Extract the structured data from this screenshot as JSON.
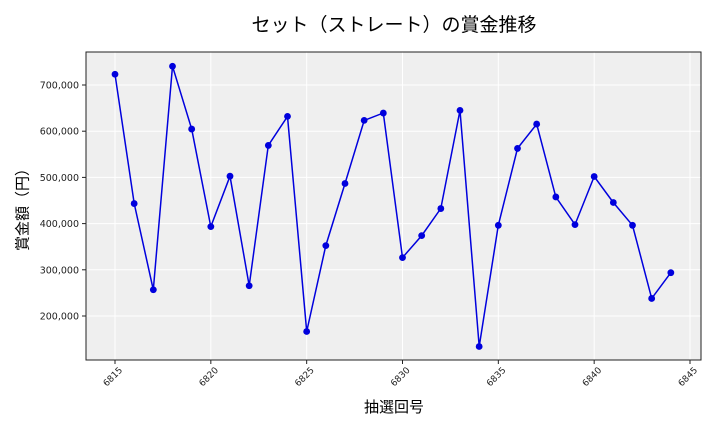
{
  "chart_data": {
    "type": "line",
    "title": "セット（ストレート）の賞金推移",
    "xlabel": "抽選回号",
    "ylabel": "賞金額（円）",
    "x": [
      6815,
      6816,
      6817,
      6818,
      6819,
      6820,
      6821,
      6822,
      6823,
      6824,
      6825,
      6826,
      6827,
      6828,
      6829,
      6830,
      6831,
      6832,
      6833,
      6834,
      6835,
      6836,
      6837,
      6838,
      6839,
      6840,
      6841,
      6842,
      6843,
      6844
    ],
    "series": [
      {
        "name": "賞金額",
        "color": "#0000dd",
        "values": [
          723200,
          443400,
          256800,
          740600,
          604600,
          393500,
          502600,
          265500,
          569200,
          632100,
          166400,
          352300,
          486800,
          623400,
          639300,
          326300,
          374000,
          432600,
          645100,
          134000,
          396300,
          562700,
          615400,
          457700,
          397800,
          502000,
          445600,
          396300,
          238000,
          293700
        ]
      }
    ],
    "xticks": [
      6815,
      6820,
      6825,
      6830,
      6835,
      6840,
      6845
    ],
    "yticks": [
      200000,
      300000,
      400000,
      500000,
      600000,
      700000
    ],
    "ytick_labels": [
      "200,000",
      "300,000",
      "400,000",
      "500,000",
      "600,000",
      "700,000"
    ],
    "xlim": [
      6813.5,
      6845.5
    ],
    "ylim": [
      100000,
      770000
    ],
    "grid": true,
    "legend": false,
    "background": "#efefef"
  }
}
